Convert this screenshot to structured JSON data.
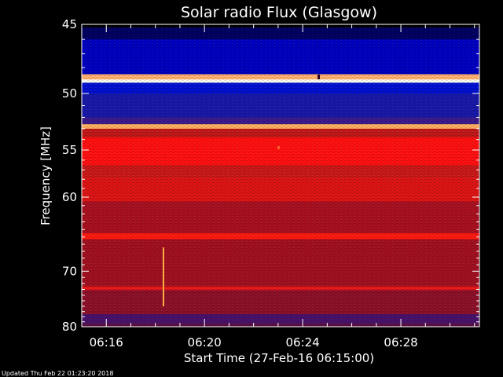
{
  "chart_data": {
    "type": "heatmap",
    "title": "Solar radio Flux (Glasgow)",
    "xlabel": "Start Time (27-Feb-16 06:15:00)",
    "ylabel": "Frequency [MHz]",
    "x_range_minutes": [
      0,
      16.2
    ],
    "x_ticks": [
      {
        "minute": 1,
        "label": "06:16"
      },
      {
        "minute": 5,
        "label": "06:20"
      },
      {
        "minute": 9,
        "label": "06:24"
      },
      {
        "minute": 13,
        "label": "06:28"
      }
    ],
    "y_range_mhz": [
      80,
      45
    ],
    "y_ticks": [
      45,
      50,
      55,
      60,
      70,
      80
    ],
    "y_scale": "reciprocal",
    "colormap": [
      "#000050",
      "#0000c8",
      "#2a1a9a",
      "#6a1030",
      "#b01010",
      "#ff1010",
      "#ff9040",
      "#ffff80"
    ],
    "bands": [
      {
        "from_mhz": 45.2,
        "to_mhz": 46.0,
        "color": "#000060"
      },
      {
        "from_mhz": 46.0,
        "to_mhz": 48.5,
        "color": "#0000c0"
      },
      {
        "from_mhz": 48.5,
        "to_mhz": 48.9,
        "color": "#ffb070"
      },
      {
        "from_mhz": 48.9,
        "to_mhz": 49.15,
        "color": "#fffff0"
      },
      {
        "from_mhz": 49.15,
        "to_mhz": 50.0,
        "color": "#0010d0"
      },
      {
        "from_mhz": 50.0,
        "to_mhz": 52.0,
        "color": "#1818a8"
      },
      {
        "from_mhz": 52.0,
        "to_mhz": 52.6,
        "color": "#3a1a8a"
      },
      {
        "from_mhz": 52.6,
        "to_mhz": 53.0,
        "color": "#ffb060"
      },
      {
        "from_mhz": 53.0,
        "to_mhz": 53.8,
        "color": "#c01818"
      },
      {
        "from_mhz": 53.8,
        "to_mhz": 56.5,
        "color": "#ff1010"
      },
      {
        "from_mhz": 56.5,
        "to_mhz": 57.8,
        "color": "#c81818"
      },
      {
        "from_mhz": 57.8,
        "to_mhz": 60.5,
        "color": "#dc1414"
      },
      {
        "from_mhz": 60.5,
        "to_mhz": 64.5,
        "color": "#a81020"
      },
      {
        "from_mhz": 64.5,
        "to_mhz": 65.3,
        "color": "#ff1a10"
      },
      {
        "from_mhz": 65.3,
        "to_mhz": 72.5,
        "color": "#a01020"
      },
      {
        "from_mhz": 72.5,
        "to_mhz": 73.1,
        "color": "#e81818"
      },
      {
        "from_mhz": 73.1,
        "to_mhz": 77.5,
        "color": "#8c1028"
      },
      {
        "from_mhz": 77.5,
        "to_mhz": 80.0,
        "color": "#5a1040"
      }
    ],
    "footer": "Updated Thu Feb 22 01:23:20 2018"
  }
}
